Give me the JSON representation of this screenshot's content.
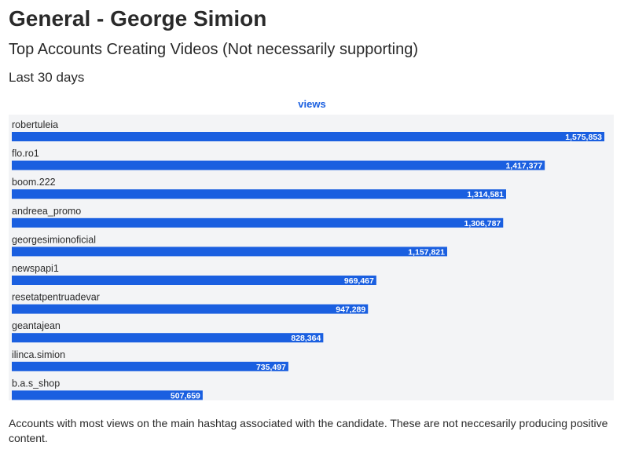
{
  "header": {
    "title": "General - George Simion",
    "subtitle": "Top Accounts Creating Videos (Not necessarily supporting)",
    "period": "Last 30 days"
  },
  "footnote": "Accounts with most views on the main hashtag associated with the candidate. These are not neccesarily producing positive content.",
  "colors": {
    "bar": "#1a5fe0",
    "panel_background": "#f3f4f6",
    "legend_text": "#1a5fe0",
    "value_label": "#ffffff"
  },
  "chart_data": {
    "type": "bar",
    "orientation": "horizontal",
    "categories": [
      "robertuleia",
      "flo.ro1",
      "boom.222",
      "andreea_promo",
      "georgesimionoficial",
      "newspapi1",
      "resetatpentruadevar",
      "geantajean",
      "ilinca.simion",
      "b.a.s_shop"
    ],
    "series": [
      {
        "name": "views",
        "values": [
          1575853,
          1417377,
          1314581,
          1306787,
          1157821,
          969467,
          947289,
          828364,
          735497,
          507659
        ],
        "labels": [
          "1,575,853",
          "1,417,377",
          "1,314,581",
          "1,306,787",
          "1,157,821",
          "969,467",
          "947,289",
          "828,364",
          "735,497",
          "507,659"
        ]
      }
    ],
    "xlim": [
      0,
      1575853
    ],
    "legend_position": "top-center",
    "grid": false,
    "data_labels": "inside-end"
  }
}
